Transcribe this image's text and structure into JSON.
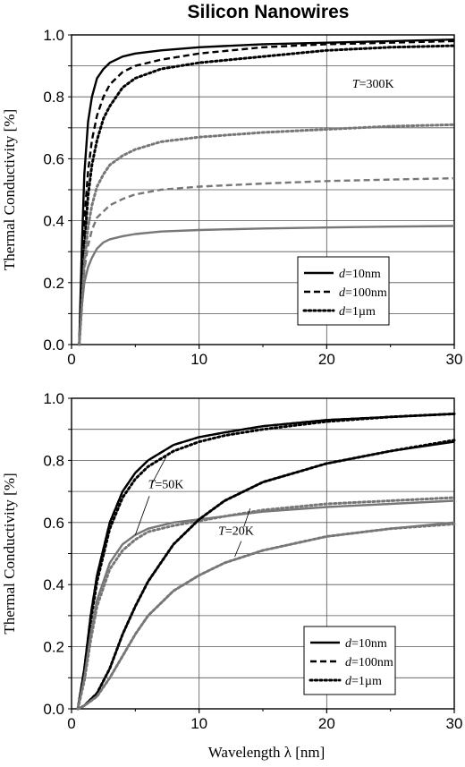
{
  "title": "Silicon Nanowires",
  "xlabel": "Wavelength λ [nm]",
  "colors": {
    "black": "#000000",
    "gray": "#777777",
    "grid": "#555555"
  },
  "chart_data": [
    {
      "type": "line",
      "title": "",
      "xlabel": "",
      "ylabel": "Thermal Conductivity [%]",
      "xlim": [
        0,
        30
      ],
      "ylim": [
        0,
        1.0
      ],
      "xticks": [
        "0",
        "10",
        "20",
        "30"
      ],
      "yticks": [
        "0.0",
        "0.2",
        "0.4",
        "0.6",
        "0.8",
        "1.0"
      ],
      "grid": true,
      "legend_position": "lower-right",
      "legend": [
        {
          "var": "d",
          "text": "=10nm",
          "style": "solid"
        },
        {
          "var": "d",
          "text": "=100nm",
          "style": "dashed"
        },
        {
          "var": "d",
          "text": "=1µm",
          "style": "dotted"
        }
      ],
      "annotations": [
        {
          "var": "T",
          "text": "=300K",
          "x": 22,
          "y": 0.83
        }
      ],
      "series": [
        {
          "style": "solid",
          "color": "black",
          "x": [
            0.6,
            0.8,
            1,
            1.3,
            1.6,
            2,
            2.5,
            3,
            4,
            5,
            7,
            10,
            15,
            20,
            25,
            30
          ],
          "y": [
            0.0,
            0.3,
            0.55,
            0.72,
            0.8,
            0.86,
            0.89,
            0.91,
            0.93,
            0.94,
            0.95,
            0.96,
            0.97,
            0.975,
            0.98,
            0.985
          ]
        },
        {
          "style": "dashed",
          "color": "black",
          "x": [
            0.6,
            0.8,
            1,
            1.3,
            1.6,
            2,
            2.5,
            3,
            4,
            5,
            7,
            10,
            15,
            20,
            25,
            30
          ],
          "y": [
            0.0,
            0.2,
            0.4,
            0.56,
            0.66,
            0.74,
            0.8,
            0.84,
            0.88,
            0.9,
            0.92,
            0.94,
            0.96,
            0.97,
            0.975,
            0.98
          ]
        },
        {
          "style": "dotted",
          "color": "black",
          "x": [
            0.6,
            0.8,
            1,
            1.3,
            1.6,
            2,
            2.5,
            3,
            4,
            5,
            7,
            10,
            15,
            20,
            25,
            30
          ],
          "y": [
            0.0,
            0.15,
            0.32,
            0.48,
            0.58,
            0.66,
            0.73,
            0.77,
            0.83,
            0.86,
            0.89,
            0.91,
            0.93,
            0.95,
            0.96,
            0.965
          ]
        },
        {
          "style": "dotted",
          "color": "gray",
          "x": [
            0.6,
            0.8,
            1,
            1.3,
            1.6,
            2,
            2.5,
            3,
            4,
            5,
            7,
            10,
            15,
            20,
            25,
            30
          ],
          "y": [
            0.0,
            0.12,
            0.26,
            0.38,
            0.45,
            0.51,
            0.55,
            0.58,
            0.61,
            0.63,
            0.655,
            0.67,
            0.685,
            0.695,
            0.705,
            0.71
          ]
        },
        {
          "style": "dashed",
          "color": "gray",
          "x": [
            0.6,
            0.8,
            1,
            1.3,
            1.6,
            2,
            2.5,
            3,
            4,
            5,
            7,
            10,
            15,
            20,
            25,
            30
          ],
          "y": [
            0.0,
            0.12,
            0.24,
            0.32,
            0.37,
            0.41,
            0.43,
            0.45,
            0.47,
            0.485,
            0.5,
            0.51,
            0.52,
            0.528,
            0.533,
            0.537
          ]
        },
        {
          "style": "solid",
          "color": "gray",
          "x": [
            0.6,
            0.8,
            1,
            1.3,
            1.6,
            2,
            2.5,
            3,
            4,
            5,
            7,
            10,
            15,
            20,
            25,
            30
          ],
          "y": [
            0.0,
            0.12,
            0.2,
            0.25,
            0.28,
            0.31,
            0.33,
            0.34,
            0.35,
            0.357,
            0.365,
            0.37,
            0.375,
            0.378,
            0.381,
            0.383
          ]
        }
      ]
    },
    {
      "type": "line",
      "title": "",
      "xlabel": "Wavelength λ [nm]",
      "ylabel": "Thermal Conductivity [%]",
      "xlim": [
        0,
        30
      ],
      "ylim": [
        0,
        1.0
      ],
      "xticks": [
        "0",
        "10",
        "20",
        "30"
      ],
      "yticks": [
        "0.0",
        "0.2",
        "0.4",
        "0.6",
        "0.8",
        "1.0"
      ],
      "grid": true,
      "legend_position": "lower-right",
      "legend": [
        {
          "var": "d",
          "text": "=10nm",
          "style": "solid"
        },
        {
          "var": "d",
          "text": "=100nm",
          "style": "dashed"
        },
        {
          "var": "d",
          "text": "=1µm",
          "style": "dotted"
        }
      ],
      "annotations": [
        {
          "var": "T",
          "text": "=50K",
          "x": 6.0,
          "y": 0.71
        },
        {
          "var": "T",
          "text": "=20K",
          "x": 11.5,
          "y": 0.56
        }
      ],
      "series": [
        {
          "style": "solid",
          "color": "black",
          "x": [
            0.5,
            1,
            1.5,
            2,
            3,
            4,
            5,
            6,
            8,
            10,
            12,
            15,
            20,
            25,
            30
          ],
          "y": [
            0.0,
            0.13,
            0.3,
            0.43,
            0.6,
            0.7,
            0.76,
            0.8,
            0.85,
            0.875,
            0.89,
            0.91,
            0.93,
            0.94,
            0.95
          ]
        },
        {
          "style": "dashed",
          "color": "black",
          "x": [
            0.5,
            1,
            1.5,
            2,
            3,
            4,
            5,
            6,
            8,
            10,
            12,
            15,
            20,
            25,
            30
          ],
          "y": [
            0.0,
            0.13,
            0.3,
            0.43,
            0.6,
            0.7,
            0.76,
            0.8,
            0.85,
            0.875,
            0.89,
            0.91,
            0.93,
            0.94,
            0.95
          ]
        },
        {
          "style": "dotted",
          "color": "black",
          "x": [
            0.5,
            1,
            1.5,
            2,
            3,
            4,
            5,
            6,
            8,
            10,
            12,
            15,
            20,
            25,
            30
          ],
          "y": [
            0.0,
            0.12,
            0.28,
            0.41,
            0.58,
            0.68,
            0.74,
            0.78,
            0.83,
            0.86,
            0.88,
            0.9,
            0.925,
            0.94,
            0.95
          ]
        },
        {
          "style": "solid",
          "color": "gray",
          "x": [
            0.5,
            1,
            1.5,
            2,
            3,
            4,
            5,
            6,
            8,
            10,
            12,
            15,
            20,
            25,
            30
          ],
          "y": [
            0.0,
            0.1,
            0.24,
            0.35,
            0.47,
            0.53,
            0.56,
            0.58,
            0.6,
            0.61,
            0.62,
            0.635,
            0.65,
            0.66,
            0.67
          ]
        },
        {
          "style": "dotted",
          "color": "gray",
          "x": [
            0.5,
            1,
            1.5,
            2,
            3,
            4,
            5,
            6,
            8,
            10,
            12,
            15,
            20,
            25,
            30
          ],
          "y": [
            0.0,
            0.09,
            0.22,
            0.33,
            0.45,
            0.51,
            0.545,
            0.57,
            0.59,
            0.605,
            0.62,
            0.64,
            0.66,
            0.67,
            0.68
          ]
        },
        {
          "style": "solid",
          "color": "black",
          "x": [
            0.5,
            1,
            2,
            3,
            4,
            5,
            6,
            8,
            10,
            12,
            15,
            20,
            25,
            30
          ],
          "y": [
            0.0,
            0.01,
            0.05,
            0.13,
            0.24,
            0.33,
            0.41,
            0.53,
            0.61,
            0.67,
            0.73,
            0.79,
            0.83,
            0.86
          ]
        },
        {
          "style": "dotted",
          "color": "black",
          "x": [
            0.5,
            1,
            2,
            3,
            4,
            5,
            6,
            8,
            10,
            12,
            15,
            20,
            25,
            30
          ],
          "y": [
            0.0,
            0.01,
            0.05,
            0.13,
            0.24,
            0.33,
            0.41,
            0.53,
            0.61,
            0.67,
            0.73,
            0.79,
            0.83,
            0.865
          ]
        },
        {
          "style": "solid",
          "color": "gray",
          "x": [
            0.5,
            1,
            2,
            3,
            4,
            5,
            6,
            8,
            10,
            12,
            15,
            20,
            25,
            30
          ],
          "y": [
            0.0,
            0.01,
            0.04,
            0.1,
            0.17,
            0.24,
            0.3,
            0.38,
            0.43,
            0.47,
            0.51,
            0.555,
            0.58,
            0.6
          ]
        },
        {
          "style": "dotted",
          "color": "gray",
          "x": [
            0.5,
            1,
            2,
            3,
            4,
            5,
            6,
            8,
            10,
            12,
            15,
            20,
            25,
            30
          ],
          "y": [
            0.0,
            0.01,
            0.04,
            0.1,
            0.17,
            0.24,
            0.3,
            0.38,
            0.43,
            0.47,
            0.51,
            0.555,
            0.58,
            0.595
          ]
        }
      ]
    }
  ]
}
